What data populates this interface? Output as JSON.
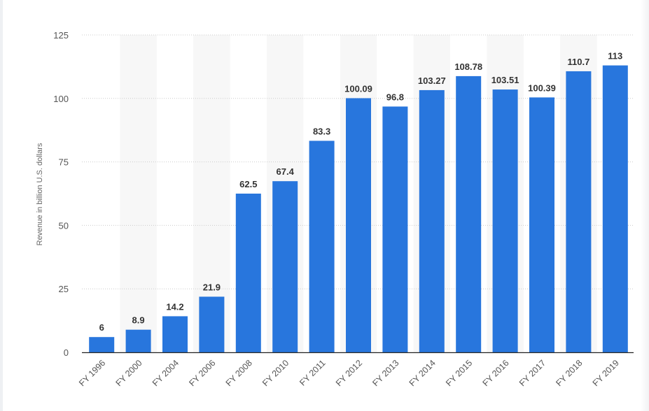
{
  "chart_data": {
    "type": "bar",
    "title": "",
    "xlabel": "",
    "ylabel": "Revenue in billion U.S. dollars",
    "ylim": [
      0,
      125
    ],
    "yticks": [
      0,
      25,
      50,
      75,
      100,
      125
    ],
    "grid": true,
    "categories": [
      "FY 1996",
      "FY 2000",
      "FY 2004",
      "FY 2006",
      "FY 2008",
      "FY 2010",
      "FY 2011",
      "FY 2012",
      "FY 2013",
      "FY 2014",
      "FY 2015",
      "FY 2016",
      "FY 2017",
      "FY 2018",
      "FY 2019"
    ],
    "values": [
      6,
      8.9,
      14.2,
      21.9,
      62.5,
      67.4,
      83.3,
      100.09,
      96.8,
      103.27,
      108.78,
      103.51,
      100.39,
      110.7,
      113
    ],
    "value_labels": [
      "6",
      "8.9",
      "14.2",
      "21.9",
      "62.5",
      "67.4",
      "83.3",
      "100.09",
      "96.8",
      "103.27",
      "108.78",
      "103.51",
      "100.39",
      "110.7",
      "113"
    ],
    "colors": {
      "bar": "#2876dd",
      "band": "#f7f7f7",
      "grid": "#cccccc",
      "axis": "#222222"
    }
  }
}
